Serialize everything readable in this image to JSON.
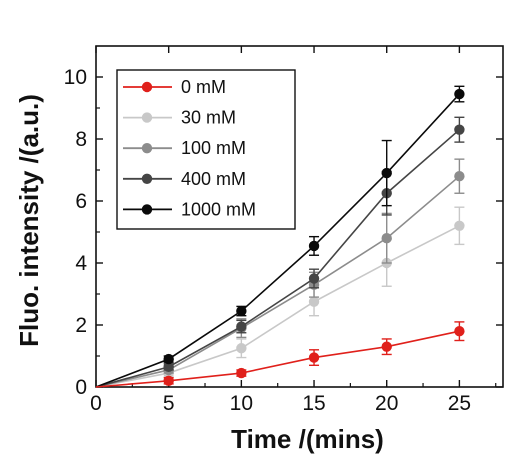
{
  "chart_data": {
    "type": "line",
    "xlabel": "Time /(mins)",
    "ylabel": "Fluo. intensity /(a.u.)",
    "xlim": [
      0,
      28
    ],
    "ylim": [
      0,
      11
    ],
    "xticks": [
      0,
      5,
      10,
      15,
      20,
      25
    ],
    "yticks": [
      0,
      2,
      4,
      6,
      8,
      10
    ],
    "grid": false,
    "legend_position": "top-left",
    "x": [
      0,
      5,
      10,
      15,
      20,
      25
    ],
    "series": [
      {
        "name": "0 mM",
        "color": "#e0201b",
        "values": [
          0,
          0.2,
          0.45,
          0.95,
          1.3,
          1.8
        ],
        "errors": [
          0,
          0.1,
          0.1,
          0.25,
          0.25,
          0.3
        ]
      },
      {
        "name": "30 mM",
        "color": "#c8c8c8",
        "values": [
          0,
          0.45,
          1.25,
          2.75,
          4.0,
          5.2
        ],
        "errors": [
          0,
          0.1,
          0.3,
          0.45,
          0.75,
          0.6
        ]
      },
      {
        "name": "100 mM",
        "color": "#8c8c8c",
        "values": [
          0,
          0.55,
          1.9,
          3.3,
          4.8,
          6.8
        ],
        "errors": [
          0,
          0.1,
          0.3,
          0.4,
          0.8,
          0.55
        ]
      },
      {
        "name": "400 mM",
        "color": "#454545",
        "values": [
          0,
          0.65,
          1.95,
          3.5,
          6.25,
          8.3
        ],
        "errors": [
          0,
          0.1,
          0.2,
          0.3,
          0.7,
          0.4
        ]
      },
      {
        "name": "1000 mM",
        "color": "#0a0a0a",
        "values": [
          0,
          0.9,
          2.45,
          4.55,
          6.9,
          9.45
        ],
        "errors": [
          0,
          0.1,
          0.15,
          0.3,
          1.05,
          0.25
        ]
      }
    ]
  }
}
